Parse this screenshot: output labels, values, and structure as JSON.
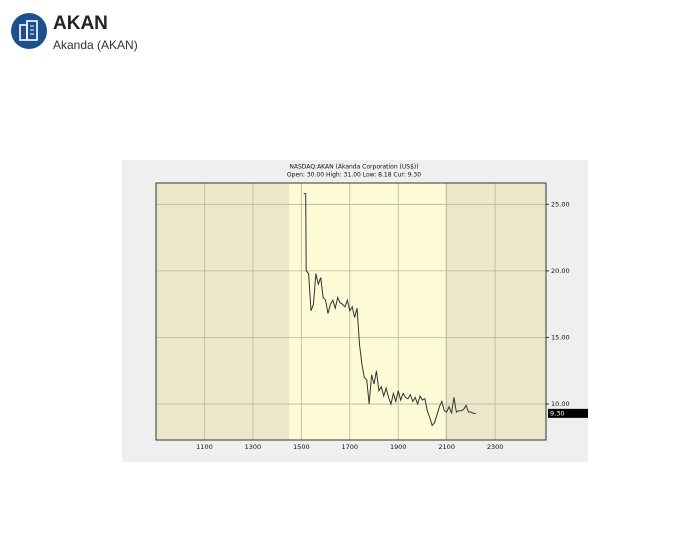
{
  "header": {
    "title": "AKAN",
    "subtitle": "Akanda (AKAN)"
  },
  "chart_data": {
    "type": "line",
    "title": "NASDAQ:AKAN (Akanda Corporation (US$))",
    "subtitle": "Open: 30.00 High: 31.00 Low: 8.18 Cur: 9.30",
    "x": [
      1510,
      1518,
      1520,
      1530,
      1540,
      1550,
      1560,
      1570,
      1580,
      1590,
      1600,
      1610,
      1620,
      1630,
      1640,
      1650,
      1660,
      1670,
      1680,
      1690,
      1700,
      1710,
      1720,
      1730,
      1740,
      1750,
      1760,
      1770,
      1780,
      1790,
      1800,
      1810,
      1820,
      1830,
      1840,
      1850,
      1860,
      1870,
      1880,
      1890,
      1900,
      1910,
      1920,
      1930,
      1940,
      1950,
      1960,
      1970,
      1980,
      1990,
      2000,
      2010,
      2020,
      2030,
      2040,
      2050,
      2060,
      2070,
      2080,
      2090,
      2100,
      2110,
      2120,
      2130,
      2140,
      2150,
      2160,
      2170,
      2180,
      2190,
      2200,
      2210,
      2220
    ],
    "series": [
      {
        "color": "#333333",
        "values": [
          25.8,
          25.8,
          20.0,
          19.8,
          17.0,
          17.5,
          19.8,
          19.0,
          19.5,
          18.0,
          17.8,
          16.8,
          17.5,
          17.8,
          17.2,
          18.0,
          17.6,
          17.5,
          17.3,
          17.8,
          17.0,
          17.3,
          16.5,
          17.2,
          14.5,
          13.0,
          12.0,
          11.8,
          10.0,
          12.2,
          11.5,
          12.5,
          11.0,
          11.3,
          10.6,
          11.2,
          10.5,
          10.0,
          10.8,
          10.2,
          11.0,
          10.3,
          10.8,
          10.5,
          10.4,
          10.7,
          10.2,
          10.5,
          10.0,
          10.6,
          10.3,
          10.4,
          9.5,
          9.0,
          8.4,
          8.6,
          9.2,
          9.8,
          10.2,
          9.5,
          9.4,
          9.8,
          9.3,
          10.5,
          9.4,
          9.5,
          9.5,
          9.6,
          9.9,
          9.4,
          9.4,
          9.3,
          9.3
        ]
      }
    ],
    "xlim": [
      900,
      2510
    ],
    "xticks": [
      1100,
      1300,
      1500,
      1700,
      1900,
      2100,
      2300
    ],
    "ylim": [
      7.3,
      26.6
    ],
    "yticks": [
      {
        "value": 10,
        "label": "10.00"
      },
      {
        "value": 15,
        "label": "15.00"
      },
      {
        "value": 20,
        "label": "20.00"
      },
      {
        "value": 25,
        "label": "25.00"
      }
    ],
    "current": {
      "value": 9.3,
      "label": "9.30"
    },
    "grid": true
  }
}
